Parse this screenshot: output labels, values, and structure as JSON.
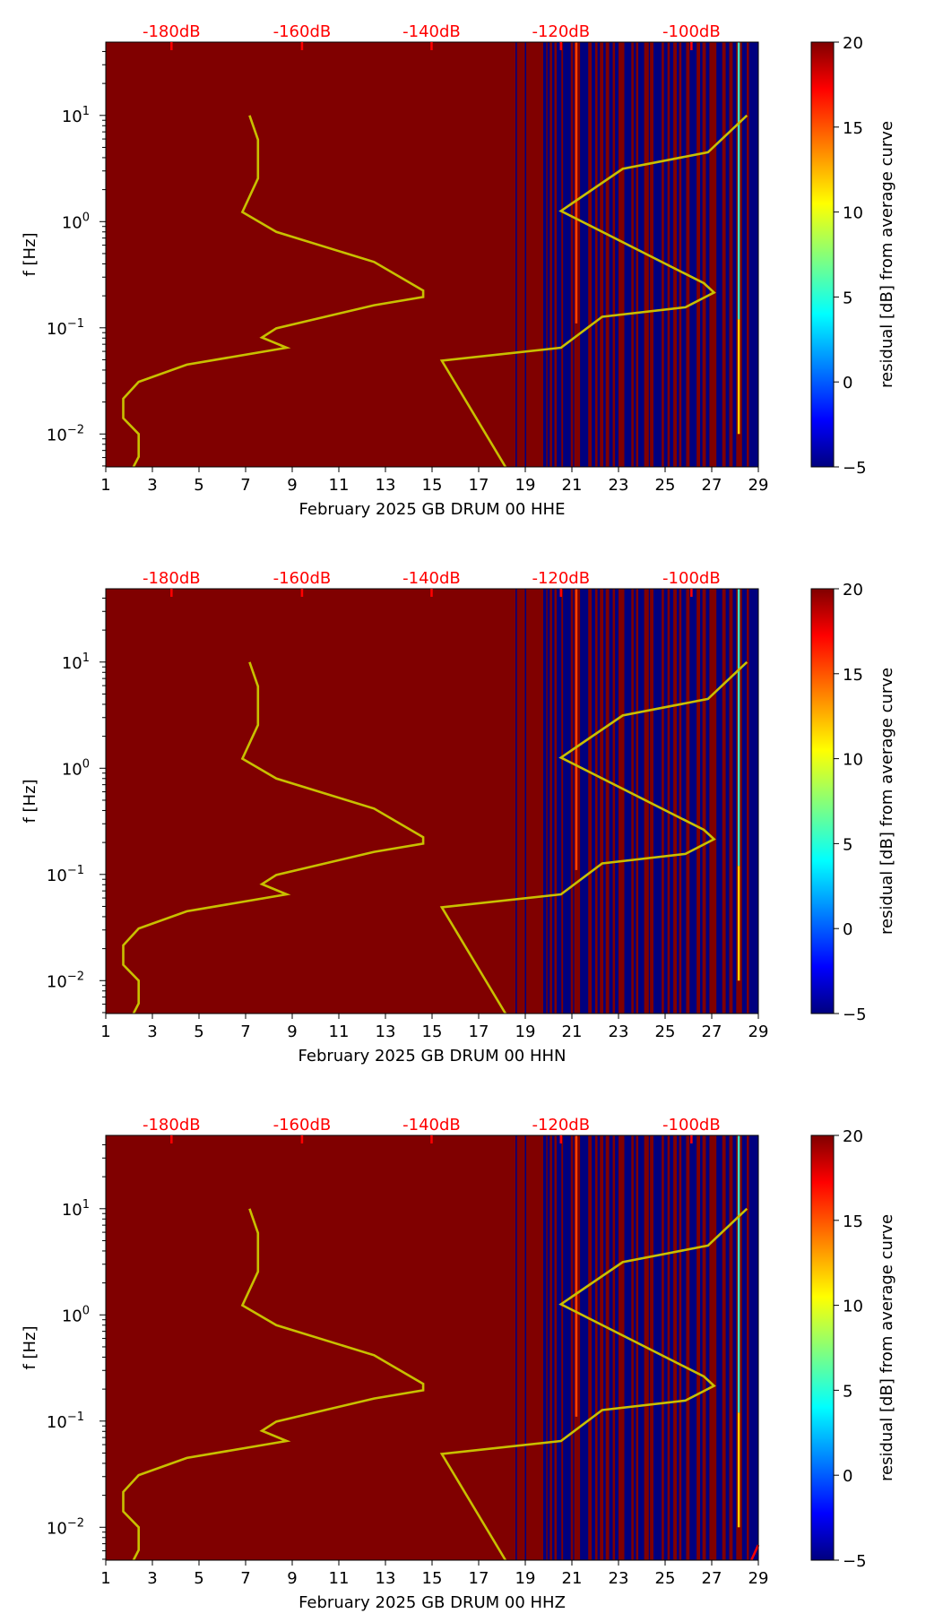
{
  "chart_data": [
    {
      "type": "heatmap",
      "xlabel": "February 2025 GB DRUM 00 HHE",
      "ylabel": "f [Hz]",
      "colorbar_label": "residual [dB] from average curve",
      "red_curve": null
    },
    {
      "type": "heatmap",
      "xlabel": "February 2025 GB DRUM 00 HHN",
      "ylabel": "f [Hz]",
      "colorbar_label": "residual [dB] from average curve",
      "red_curve": null
    },
    {
      "type": "heatmap",
      "xlabel": "February 2025 GB DRUM 00 HHZ",
      "ylabel": "f [Hz]",
      "colorbar_label": "residual [dB] from average curve",
      "red_curve": [
        [
          28.7,
          0.0049
        ],
        [
          29.0,
          0.0068
        ]
      ]
    }
  ],
  "shared": {
    "xlim": [
      1,
      29
    ],
    "ylim": [
      0.0049,
      49
    ],
    "yscale": "log",
    "x_ticks": [
      "1",
      "3",
      "5",
      "7",
      "9",
      "11",
      "13",
      "15",
      "17",
      "19",
      "21",
      "23",
      "25",
      "27",
      "29"
    ],
    "y_ticks": [
      {
        "base": "10",
        "exp": "1",
        "value": 10
      },
      {
        "base": "10",
        "exp": "0",
        "value": 1
      },
      {
        "base": "10",
        "exp": "−1",
        "value": 0.1
      },
      {
        "base": "10",
        "exp": "−2",
        "value": 0.01
      }
    ],
    "colorbar": {
      "min": -5,
      "max": 20,
      "ticks": [
        "20",
        "15",
        "10",
        "5",
        "0",
        "−5"
      ],
      "tick_values": [
        20,
        15,
        10,
        5,
        0,
        -5
      ],
      "colormap": "jet"
    },
    "top_labels": [
      {
        "label": "-180dB",
        "x": 3.82
      },
      {
        "label": "-160dB",
        "x": 9.42
      },
      {
        "label": "-140dB",
        "x": 14.98
      },
      {
        "label": "-120dB",
        "x": 20.53
      },
      {
        "label": "-100dB",
        "x": 26.13
      }
    ],
    "background_value_color": "#800000",
    "low_value_color": "#00007f",
    "curve_color": "#c8c000",
    "top_label_color": "#ff0000",
    "low_residual_day_intervals": [
      [
        18.58,
        18.64
      ],
      [
        18.98,
        19.04
      ],
      [
        19.77,
        19.9
      ],
      [
        19.95,
        20.05
      ],
      [
        20.15,
        20.25
      ],
      [
        20.35,
        20.55
      ],
      [
        20.62,
        20.95
      ],
      [
        21.05,
        21.1
      ],
      [
        21.35,
        21.7
      ],
      [
        21.85,
        22.0
      ],
      [
        22.1,
        22.2
      ],
      [
        22.35,
        22.45
      ],
      [
        22.6,
        22.75
      ],
      [
        22.85,
        23.0
      ],
      [
        23.25,
        23.55
      ],
      [
        23.65,
        23.75
      ],
      [
        23.85,
        24.1
      ],
      [
        24.3,
        24.35
      ],
      [
        24.5,
        24.85
      ],
      [
        24.95,
        25.1
      ],
      [
        25.2,
        25.35
      ],
      [
        25.5,
        25.6
      ],
      [
        25.7,
        25.9
      ],
      [
        26.05,
        26.35
      ],
      [
        26.5,
        26.6
      ],
      [
        26.75,
        26.9
      ],
      [
        27.2,
        27.45
      ],
      [
        27.6,
        27.75
      ],
      [
        27.9,
        28.05
      ],
      [
        28.3,
        28.5
      ],
      [
        28.6,
        29.0
      ]
    ],
    "streaks": [
      {
        "x": 28.15,
        "f_from": 0.12,
        "f_to": 49,
        "color": "#40e0c0"
      },
      {
        "x": 28.15,
        "f_from": 0.01,
        "f_to": 0.12,
        "color": "#ffd000"
      },
      {
        "x": 21.18,
        "f_from": 0.11,
        "f_to": 49,
        "color": "#ff4000"
      }
    ],
    "curves": [
      [
        [
          7.17,
          10
        ],
        [
          7.53,
          5.9
        ],
        [
          7.53,
          2.55
        ],
        [
          6.86,
          1.23
        ],
        [
          8.32,
          0.8
        ],
        [
          12.51,
          0.417
        ],
        [
          14.62,
          0.224
        ],
        [
          14.62,
          0.195
        ],
        [
          12.51,
          0.163
        ],
        [
          8.32,
          0.099
        ],
        [
          7.7,
          0.081
        ],
        [
          8.76,
          0.065
        ],
        [
          4.48,
          0.045
        ],
        [
          2.41,
          0.031
        ],
        [
          1.75,
          0.0215
        ],
        [
          1.75,
          0.0141
        ],
        [
          2.41,
          0.01
        ],
        [
          2.41,
          0.0061
        ],
        [
          2.19,
          0.0049
        ]
      ],
      [
        [
          18.15,
          0.0049
        ],
        [
          15.42,
          0.049
        ],
        [
          20.53,
          0.065
        ],
        [
          22.3,
          0.127
        ],
        [
          25.87,
          0.156
        ],
        [
          27.1,
          0.215
        ],
        [
          26.66,
          0.263
        ],
        [
          20.53,
          1.26
        ],
        [
          23.18,
          3.14
        ],
        [
          26.84,
          4.5
        ],
        [
          28.51,
          10
        ]
      ]
    ]
  }
}
